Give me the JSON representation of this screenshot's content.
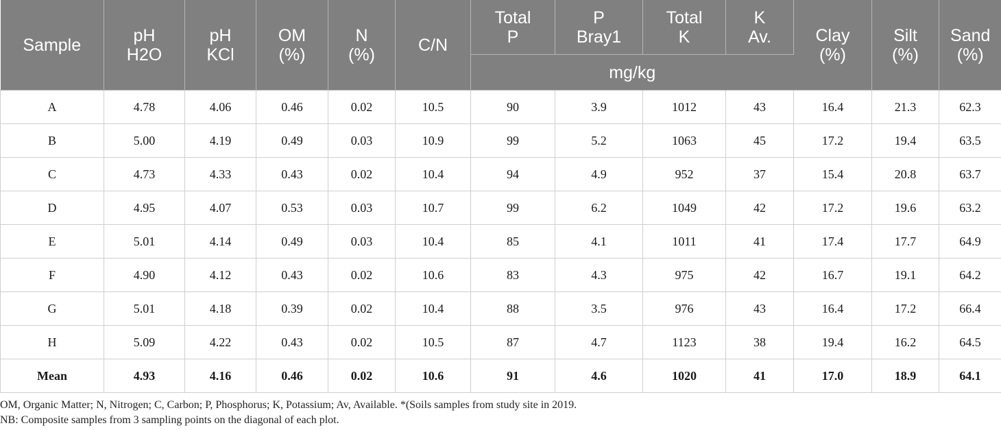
{
  "table": {
    "headers": {
      "sample": "Sample",
      "ph_h2o": [
        "pH",
        "H2O"
      ],
      "ph_kcl": [
        "pH",
        "KCl"
      ],
      "om": [
        "OM",
        "(%)"
      ],
      "n": [
        "N",
        "(%)"
      ],
      "cn": "C/N",
      "total_p": [
        "Total",
        "P"
      ],
      "p_bray1": [
        "P",
        "Bray1"
      ],
      "total_k": [
        "Total",
        "K"
      ],
      "k_av": [
        "K",
        "Av."
      ],
      "clay": [
        "Clay",
        "(%)"
      ],
      "silt": [
        "Silt",
        "(%)"
      ],
      "sand": [
        "Sand",
        "(%)"
      ],
      "unit_group": "mg/kg"
    },
    "rows": [
      [
        "A",
        "4.78",
        "4.06",
        "0.46",
        "0.02",
        "10.5",
        "90",
        "3.9",
        "1012",
        "43",
        "16.4",
        "21.3",
        "62.3"
      ],
      [
        "B",
        "5.00",
        "4.19",
        "0.49",
        "0.03",
        "10.9",
        "99",
        "5.2",
        "1063",
        "45",
        "17.2",
        "19.4",
        "63.5"
      ],
      [
        "C",
        "4.73",
        "4.33",
        "0.43",
        "0.02",
        "10.4",
        "94",
        "4.9",
        "952",
        "37",
        "15.4",
        "20.8",
        "63.7"
      ],
      [
        "D",
        "4.95",
        "4.07",
        "0.53",
        "0.03",
        "10.7",
        "99",
        "6.2",
        "1049",
        "42",
        "17.2",
        "19.6",
        "63.2"
      ],
      [
        "E",
        "5.01",
        "4.14",
        "0.49",
        "0.03",
        "10.4",
        "85",
        "4.1",
        "1011",
        "41",
        "17.4",
        "17.7",
        "64.9"
      ],
      [
        "F",
        "4.90",
        "4.12",
        "0.43",
        "0.02",
        "10.6",
        "83",
        "4.3",
        "975",
        "42",
        "16.7",
        "19.1",
        "64.2"
      ],
      [
        "G",
        "5.01",
        "4.18",
        "0.39",
        "0.02",
        "10.4",
        "88",
        "3.5",
        "976",
        "43",
        "16.4",
        "17.2",
        "66.4"
      ],
      [
        "H",
        "5.09",
        "4.22",
        "0.43",
        "0.02",
        "10.5",
        "87",
        "4.7",
        "1123",
        "38",
        "19.4",
        "16.2",
        "64.5"
      ]
    ],
    "mean": [
      "Mean",
      "4.93",
      "4.16",
      "0.46",
      "0.02",
      "10.6",
      "91",
      "4.6",
      "1020",
      "41",
      "17.0",
      "18.9",
      "64.1"
    ]
  },
  "footnotes": {
    "line1": "OM, Organic Matter; N, Nitrogen; C, Carbon; P, Phosphorus; K, Potassium; Av, Available. *(Soils samples from study site in 2019.",
    "line2": "NB: Composite samples from 3 sampling points on the diagonal of each plot."
  },
  "colors": {
    "header_bg": "#808080",
    "header_text": "#ffffff"
  }
}
